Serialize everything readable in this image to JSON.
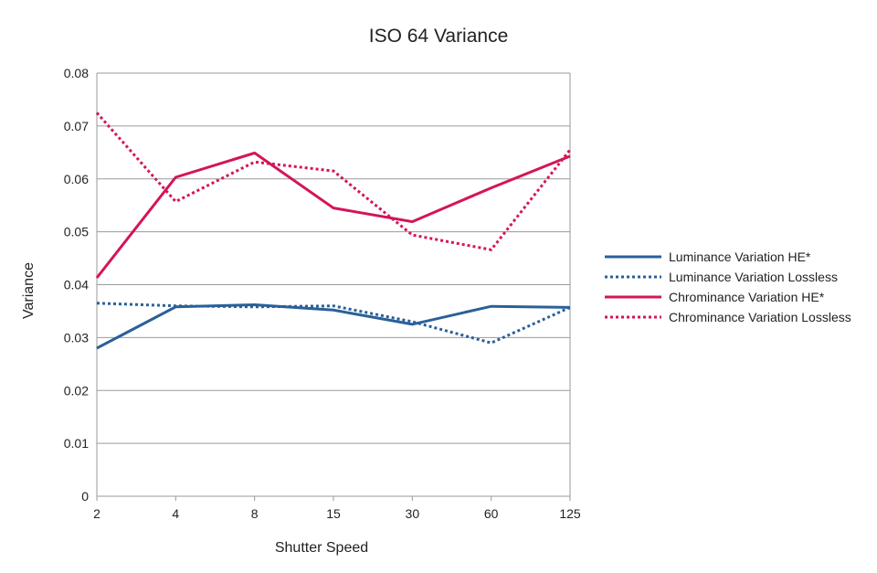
{
  "chart_data": {
    "type": "line",
    "title": "ISO 64 Variance",
    "xlabel": "Shutter Speed",
    "ylabel": "Variance",
    "categories": [
      "2",
      "4",
      "8",
      "15",
      "30",
      "60",
      "125"
    ],
    "yticks": [
      "0",
      "0.01",
      "0.02",
      "0.03",
      "0.04",
      "0.05",
      "0.06",
      "0.07",
      "0.08"
    ],
    "ylim": [
      0,
      0.08
    ],
    "grid": "horizontal",
    "legend_position": "right",
    "series": [
      {
        "name": "Luminance Variation HE*",
        "color": "#2a6099",
        "style": "solid",
        "values": [
          0.028,
          0.0358,
          0.0362,
          0.0352,
          0.0325,
          0.0359,
          0.0357
        ]
      },
      {
        "name": "Luminance Variation Lossless",
        "color": "#2a6099",
        "style": "dotted",
        "values": [
          0.0365,
          0.036,
          0.0358,
          0.036,
          0.033,
          0.029,
          0.0357
        ]
      },
      {
        "name": "Chrominance Variation HE*",
        "color": "#d4145a",
        "style": "solid",
        "values": [
          0.0413,
          0.0603,
          0.0649,
          0.0545,
          0.0519,
          0.0583,
          0.0643
        ]
      },
      {
        "name": "Chrominance Variation Lossless",
        "color": "#d4145a",
        "style": "dotted",
        "values": [
          0.0725,
          0.0557,
          0.0632,
          0.0615,
          0.0494,
          0.0466,
          0.0655
        ]
      }
    ]
  }
}
